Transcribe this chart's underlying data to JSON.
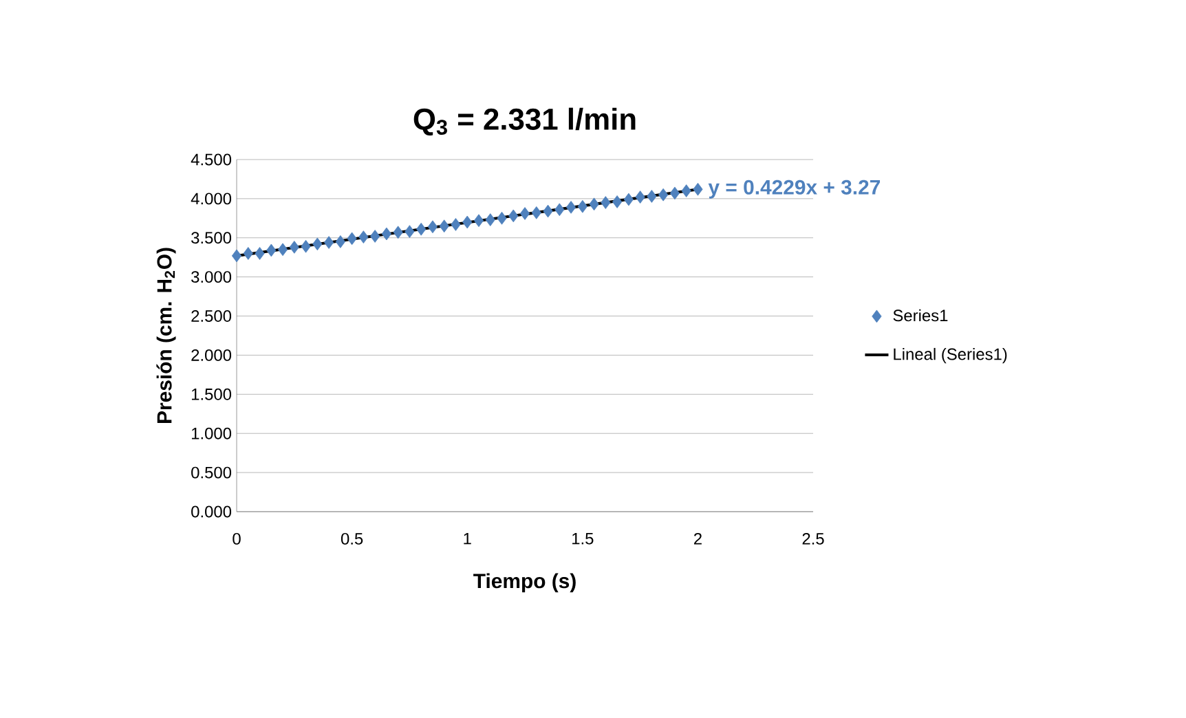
{
  "chart_data": {
    "type": "scatter",
    "title": "Q$_{3}$ = 2.331 l/min",
    "xlabel": "Tiempo (s)",
    "ylabel": "Presión (cm. H$_{2}$O)",
    "xlim": [
      0,
      2.5
    ],
    "xticks": [
      0,
      0.5,
      1,
      1.5,
      2,
      2.5
    ],
    "ylim": [
      0,
      4.5
    ],
    "yticks": [
      {
        "value": 0,
        "label": "0.000"
      },
      {
        "value": 0.5,
        "label": "0.500"
      },
      {
        "value": 1,
        "label": "1.000"
      },
      {
        "value": 1.5,
        "label": "1.500"
      },
      {
        "value": 2,
        "label": "2.000"
      },
      {
        "value": 2.5,
        "label": "2.500"
      },
      {
        "value": 3,
        "label": "3.000"
      },
      {
        "value": 3.5,
        "label": "3.500"
      },
      {
        "value": 4,
        "label": "4.000"
      },
      {
        "value": 4.5,
        "label": "4.500"
      }
    ],
    "grid": "y",
    "legend": "right",
    "series": [
      {
        "name": "Series1",
        "type": "scatter",
        "marker": "diamond",
        "color": "#4f81bd",
        "x": [
          0,
          0.05,
          0.1,
          0.15,
          0.2,
          0.25,
          0.3,
          0.35,
          0.4,
          0.45,
          0.5,
          0.55,
          0.6,
          0.65,
          0.7,
          0.75,
          0.8,
          0.85,
          0.9,
          0.95,
          1.0,
          1.05,
          1.1,
          1.15,
          1.2,
          1.25,
          1.3,
          1.35,
          1.4,
          1.45,
          1.5,
          1.55,
          1.6,
          1.65,
          1.7,
          1.75,
          1.8,
          1.85,
          1.9,
          1.95,
          2.0
        ],
        "values": [
          3.27,
          3.3,
          3.3,
          3.34,
          3.35,
          3.38,
          3.39,
          3.42,
          3.44,
          3.45,
          3.49,
          3.51,
          3.52,
          3.55,
          3.57,
          3.58,
          3.61,
          3.64,
          3.65,
          3.67,
          3.7,
          3.72,
          3.73,
          3.75,
          3.78,
          3.81,
          3.82,
          3.84,
          3.86,
          3.89,
          3.9,
          3.93,
          3.95,
          3.96,
          3.99,
          4.02,
          4.03,
          4.05,
          4.07,
          4.1,
          4.12
        ]
      },
      {
        "name": "Lineal (Series1)",
        "type": "line",
        "line_style": "solid",
        "color": "#000000",
        "x": [
          0,
          2
        ],
        "values": [
          3.27,
          4.12
        ]
      }
    ],
    "annotations": [
      {
        "text": "**y = 0.4229x + 3.27**",
        "x": 2,
        "y": 4.12
      }
    ]
  }
}
